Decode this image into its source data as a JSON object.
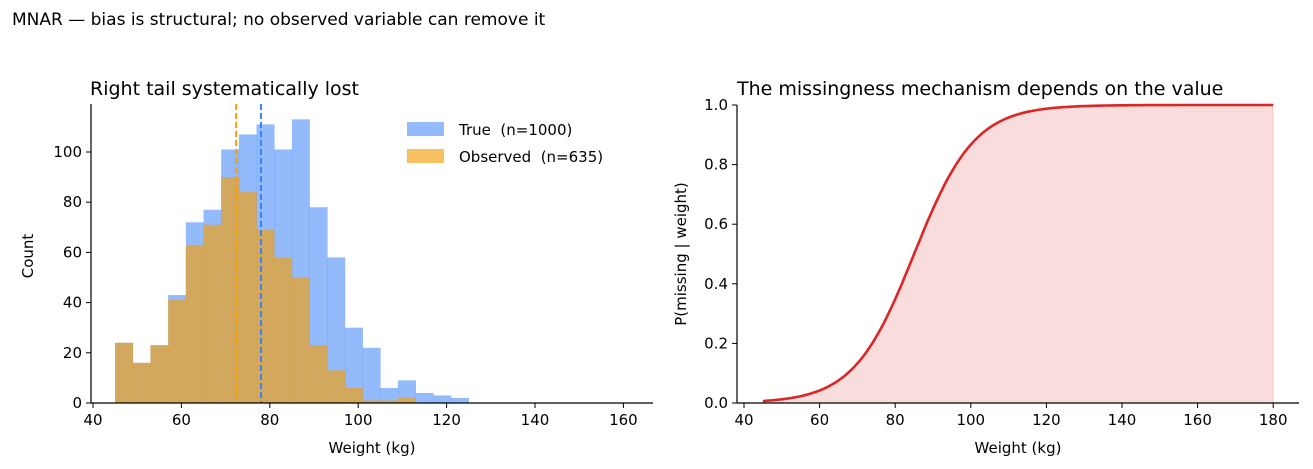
{
  "figure": {
    "suptitle": "MNAR — bias is structural; no observed variable can remove it"
  },
  "colors": {
    "true_hist": "#3b82f6",
    "observed_hist": "#f59e0b",
    "true_mean_line": "#3b82f6",
    "observed_mean_line": "#f59e0b",
    "curve": "#dc2626",
    "curve_fill": "#dc2626"
  },
  "chart_data": [
    {
      "type": "bar",
      "subtype": "overlaid_histogram",
      "title": "Right tail systematically lost",
      "xlabel": "Weight (kg)",
      "ylabel": "Count",
      "xlim": [
        38,
        165
      ],
      "ylim": [
        0,
        118
      ],
      "xticks": [
        40,
        60,
        80,
        100,
        120,
        140,
        160
      ],
      "yticks": [
        0,
        20,
        40,
        60,
        80,
        100
      ],
      "grid": false,
      "legend_position": "upper right",
      "bin_edges": [
        45,
        49,
        53,
        57,
        61,
        65,
        69,
        73,
        77,
        81,
        85,
        89,
        93,
        97,
        101,
        105,
        109,
        113,
        117,
        121,
        125
      ],
      "series": [
        {
          "name": "True  (n=1000)",
          "color": "#3b82f6",
          "alpha": 0.55,
          "values": [
            24,
            16,
            23,
            43,
            72,
            77,
            101,
            107,
            111,
            101,
            113,
            78,
            58,
            30,
            22,
            6,
            9,
            4,
            3,
            2
          ]
        },
        {
          "name": "Observed  (n=635)",
          "color": "#f59e0b",
          "alpha": 0.65,
          "values": [
            24,
            16,
            23,
            41,
            63,
            71,
            90,
            84,
            69,
            58,
            50,
            23,
            13,
            6,
            1,
            1,
            2,
            0,
            0,
            0
          ]
        }
      ],
      "annotations": [
        {
          "type": "vline",
          "style": "dashed",
          "x": 72.4,
          "color": "#f59e0b",
          "meaning": "observed mean"
        },
        {
          "type": "vline",
          "style": "dashed",
          "x": 78.0,
          "color": "#3b82f6",
          "meaning": "true mean"
        }
      ]
    },
    {
      "type": "area",
      "title": "The missingness mechanism depends on the value",
      "xlabel": "Weight (kg)",
      "ylabel": "P(missing | weight)",
      "xlim": [
        38,
        187
      ],
      "ylim": [
        0,
        1.0
      ],
      "xticks": [
        40,
        60,
        80,
        100,
        120,
        140,
        160,
        180
      ],
      "yticks": [
        0.0,
        0.2,
        0.4,
        0.6,
        0.8,
        1.0
      ],
      "grid": false,
      "series": [
        {
          "name": "P(missing | weight)",
          "color": "#dc2626",
          "x": [
            45,
            50,
            55,
            60,
            65,
            70,
            75,
            80,
            85,
            90,
            95,
            100,
            105,
            110,
            120,
            130,
            140,
            160,
            180
          ],
          "values": [
            0.007,
            0.013,
            0.024,
            0.042,
            0.076,
            0.13,
            0.22,
            0.35,
            0.5,
            0.65,
            0.78,
            0.87,
            0.92,
            0.96,
            0.988,
            0.996,
            0.999,
            1.0,
            1.0
          ]
        }
      ]
    }
  ]
}
